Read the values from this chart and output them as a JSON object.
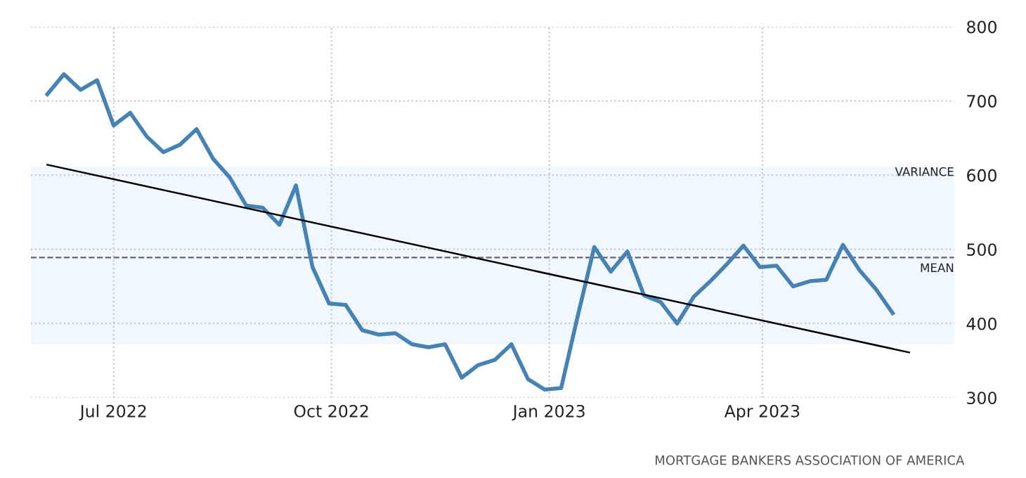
{
  "chart_data": {
    "type": "line",
    "x": [
      "2022-06-03",
      "2022-06-10",
      "2022-06-17",
      "2022-06-24",
      "2022-07-01",
      "2022-07-08",
      "2022-07-15",
      "2022-07-22",
      "2022-07-29",
      "2022-08-05",
      "2022-08-12",
      "2022-08-19",
      "2022-08-26",
      "2022-09-02",
      "2022-09-09",
      "2022-09-16",
      "2022-09-23",
      "2022-09-30",
      "2022-10-07",
      "2022-10-14",
      "2022-10-21",
      "2022-10-28",
      "2022-11-04",
      "2022-11-11",
      "2022-11-18",
      "2022-11-25",
      "2022-12-02",
      "2022-12-09",
      "2022-12-16",
      "2022-12-23",
      "2022-12-30",
      "2023-01-06",
      "2023-01-13",
      "2023-01-20",
      "2023-01-27",
      "2023-02-03",
      "2023-02-10",
      "2023-02-17",
      "2023-02-24",
      "2023-03-03",
      "2023-03-10",
      "2023-03-17",
      "2023-03-24",
      "2023-03-31",
      "2023-04-07",
      "2023-04-14",
      "2023-04-21",
      "2023-04-28",
      "2023-05-05",
      "2023-05-12",
      "2023-05-19",
      "2023-05-26"
    ],
    "series": [
      {
        "color": "#4682b4",
        "values": [
          709,
          736,
          715,
          728,
          667,
          684,
          652,
          631,
          641,
          662,
          622,
          597,
          559,
          556,
          533,
          586,
          476,
          427,
          425,
          391,
          385,
          387,
          372,
          368,
          372,
          327,
          344,
          351,
          372,
          325,
          311,
          313,
          410,
          503,
          470,
          497,
          438,
          429,
          400,
          436,
          457,
          480,
          505,
          476,
          478,
          450,
          457,
          459,
          506,
          472,
          446,
          414
        ]
      },
      {
        "color": "#000000",
        "x": [
          "2022-06-03",
          "2023-06-02"
        ],
        "values": [
          614,
          361
        ]
      }
    ],
    "xlim": [
      "2022-05-27",
      "2023-06-21"
    ],
    "xticks": [
      {
        "value": "2022-07-01",
        "label": "Jul 2022"
      },
      {
        "value": "2022-10-01",
        "label": "Oct 2022"
      },
      {
        "value": "2023-01-01",
        "label": "Jan 2023"
      },
      {
        "value": "2023-04-01",
        "label": "Apr 2023"
      }
    ],
    "ylim": [
      300,
      800
    ],
    "yticks": [
      300,
      400,
      500,
      600,
      700,
      800
    ],
    "bands": [
      {
        "axis": "y",
        "from": 372,
        "to": 611,
        "label": "VARIANCE",
        "color": "#f0f7fe"
      }
    ],
    "ref_lines": [
      {
        "axis": "y",
        "value": 489,
        "label": "MEAN",
        "color": "#666666",
        "line_style": "dashed"
      }
    ],
    "annotations": [
      "MORTGAGE BANKERS ASSOCIATION OF AMERICA"
    ],
    "grid": true,
    "marker": "none",
    "line_style": "solid"
  }
}
